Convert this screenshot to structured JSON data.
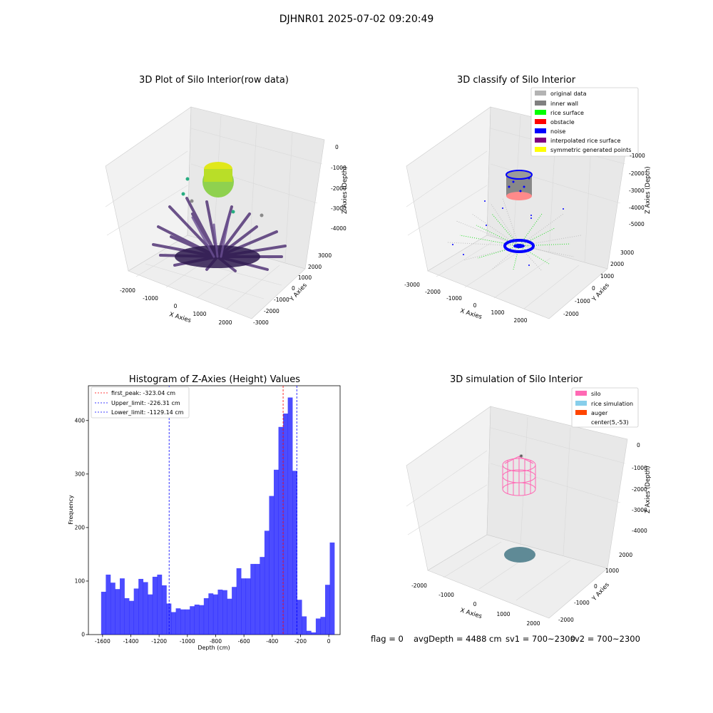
{
  "suptitle": "DJHNR01 2025-07-02 09:20:49",
  "panels": {
    "raw": {
      "title": "3D Plot of Silo Interior(row data)",
      "xlabel": "X Axies",
      "ylabel": "Y Axies",
      "zlabel": "Z Axies (Depth)",
      "xticks": [
        "-2000",
        "-1000",
        "0",
        "1000",
        "2000"
      ],
      "yticks": [
        "-3000",
        "-2000",
        "-1000",
        "0",
        "1000",
        "2000",
        "3000"
      ],
      "zticks": [
        "0",
        "-1000",
        "-2000",
        "-3000",
        "-4000"
      ]
    },
    "classify": {
      "title": "3D classify of Silo Interior",
      "xlabel": "X Axies",
      "ylabel": "Y Axies",
      "zlabel": "Z Axies (Depth)",
      "xticks": [
        "-3000",
        "-2000",
        "-1000",
        "0",
        "1000",
        "2000"
      ],
      "yticks": [
        "-2000",
        "-1000",
        "0",
        "1000",
        "2000",
        "3000"
      ],
      "zticks": [
        "-1000",
        "-2000",
        "-3000",
        "-4000",
        "-5000"
      ],
      "legend": [
        {
          "label": "original data",
          "color": "#b3b3b3"
        },
        {
          "label": "inner wall",
          "color": "#808080"
        },
        {
          "label": "rice surface",
          "color": "#00ff00"
        },
        {
          "label": "obstacle",
          "color": "#ff0000"
        },
        {
          "label": "noise",
          "color": "#0000ff"
        },
        {
          "label": "interpolated rice surface",
          "color": "#800080"
        },
        {
          "label": "symmetric generated points",
          "color": "#ffff00"
        }
      ]
    },
    "simulation": {
      "title": "3D simulation of Silo Interior",
      "xlabel": "X Axies",
      "ylabel": "Y Axies",
      "zlabel": "Z Axies (Depth)",
      "xticks": [
        "-2000",
        "-1000",
        "0",
        "1000",
        "2000"
      ],
      "yticks": [
        "-2000",
        "-1000",
        "0",
        "1000",
        "2000"
      ],
      "zticks": [
        "0",
        "-1000",
        "-2000",
        "-3000",
        "-4000"
      ],
      "legend": [
        {
          "label": "silo",
          "color": "#ff69b4"
        },
        {
          "label": "rice simulation",
          "color": "#87ceeb"
        },
        {
          "label": "auger",
          "color": "#ff4500"
        },
        {
          "label": "center(5,-53)",
          "color": ""
        }
      ]
    }
  },
  "footer": {
    "flag": "flag = 0",
    "avg": "avgDepth = 4488 cm",
    "sv1": "sv1 = 700~2300",
    "sv2": "sv2 = 700~2300"
  },
  "chart_data": [
    {
      "type": "bar",
      "title": "Histogram of Z-Axies (Height) Values",
      "xlabel": "Depth (cm)",
      "ylabel": "Frequency",
      "bar_color": "#0000ff",
      "bin_start": -1610,
      "bin_width": 33,
      "values": [
        80,
        112,
        97,
        85,
        105,
        68,
        63,
        86,
        104,
        98,
        75,
        108,
        112,
        92,
        58,
        42,
        49,
        47,
        47,
        53,
        56,
        55,
        68,
        77,
        75,
        84,
        83,
        67,
        89,
        124,
        105,
        105,
        132,
        132,
        145,
        194,
        259,
        308,
        388,
        413,
        443,
        306,
        65,
        34,
        7,
        4,
        30,
        33,
        93,
        172
      ],
      "xlim": [
        -1700,
        80
      ],
      "ylim": [
        0,
        465
      ],
      "xticks": [
        -1600,
        -1400,
        -1200,
        -1000,
        -800,
        -600,
        -400,
        -200,
        0
      ],
      "yticks": [
        0,
        100,
        200,
        300,
        400
      ],
      "lines": [
        {
          "label": "first_peak: -323.04 cm",
          "x": -323.04,
          "color": "#ff0000"
        },
        {
          "label": "Upper_limit: -226.31 cm",
          "x": -226.31,
          "color": "#0000ff"
        },
        {
          "label": "Lower_limit: -1129.14 cm",
          "x": -1129.14,
          "color": "#0000ff"
        }
      ],
      "legend_position": "upper-left",
      "grid": false
    }
  ]
}
